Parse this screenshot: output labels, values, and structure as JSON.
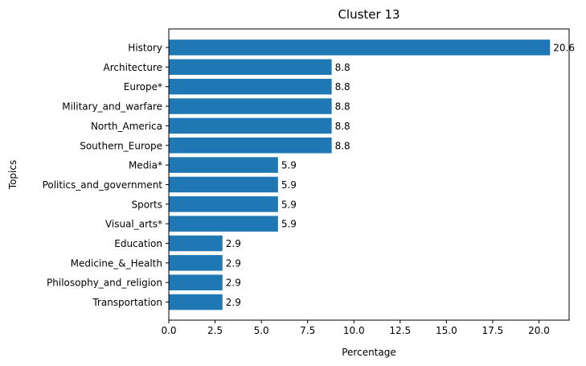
{
  "chart_data": {
    "type": "bar",
    "orientation": "horizontal",
    "title": "Cluster 13",
    "xlabel": "Percentage",
    "ylabel": "Topics",
    "xlim": [
      0,
      21.63
    ],
    "xticks": [
      "0.0",
      "2.5",
      "5.0",
      "7.5",
      "10.0",
      "12.5",
      "15.0",
      "17.5",
      "20.0"
    ],
    "grid": false,
    "bar_color": "#1f77b4",
    "categories": [
      "History",
      "Architecture",
      "Europe*",
      "Military_and_warfare",
      "North_America",
      "Southern_Europe",
      "Media*",
      "Politics_and_government",
      "Sports",
      "Visual_arts*",
      "Education",
      "Medicine_&_Health",
      "Philosophy_and_religion",
      "Transportation"
    ],
    "values": [
      20.6,
      8.8,
      8.8,
      8.8,
      8.8,
      8.8,
      5.9,
      5.9,
      5.9,
      5.9,
      2.9,
      2.9,
      2.9,
      2.9
    ],
    "value_labels": [
      "20.6",
      "8.8",
      "8.8",
      "8.8",
      "8.8",
      "8.8",
      "5.9",
      "5.9",
      "5.9",
      "5.9",
      "2.9",
      "2.9",
      "2.9",
      "2.9"
    ]
  }
}
